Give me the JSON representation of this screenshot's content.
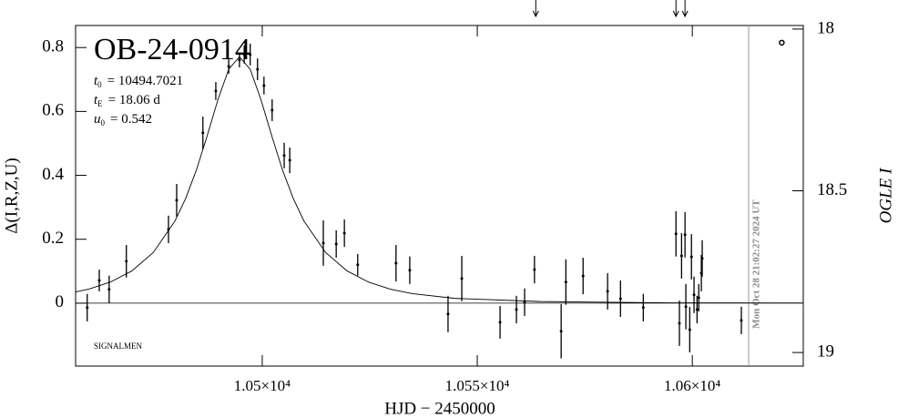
{
  "chart_data": {
    "type": "scatter",
    "title": "OB-24-0914",
    "annotations": [
      {
        "symbol": "t",
        "subscript": "0",
        "text": "= 10494.7021"
      },
      {
        "symbol": "t",
        "subscript": "E",
        "text": "= 18.06 d"
      },
      {
        "symbol": "u",
        "subscript": "0",
        "text": "= 0.542"
      }
    ],
    "note": "SIGNALMEN",
    "timestamp": "Mon Oct 28 21:02:27 2024 UT",
    "timestamp_x": 10613.1,
    "arrows_x": [
      10563.6,
      10596.2,
      10598.3
    ],
    "xlabel": "HJD − 2450000",
    "ylabel": "Δ(I,R,Z,U)",
    "y2label": "OGLE I",
    "xlim": [
      10456.6,
      10625.8
    ],
    "ylim": [
      -0.197,
      0.869
    ],
    "y2lim": [
      19.042,
      17.989
    ],
    "xticks": [
      {
        "value": 10500,
        "label": "1.05×10⁴"
      },
      {
        "value": 10550,
        "label": "1.055×10⁴"
      },
      {
        "value": 10600,
        "label": "1.06×10⁴"
      }
    ],
    "yticks": [
      0,
      0.2,
      0.4,
      0.6,
      0.8
    ],
    "y2ticks": [
      18,
      18.5,
      19
    ],
    "baseline": 0,
    "series": [
      {
        "type": "errorbar",
        "color": "#000000",
        "x": [
          10459.3,
          10462.1,
          10464.4,
          10468.4,
          10478.2,
          10480.1,
          10486.2,
          10489.2,
          10492.2,
          10494.7,
          10495.8,
          10497.2,
          10498.9,
          10500.4,
          10502.3,
          10505.1,
          10506.4,
          10514.2,
          10517.2,
          10519.1,
          10522.2,
          10531.1,
          10534.3,
          10543.2,
          10546.4,
          10555.3,
          10559.1,
          10561.0,
          10563.3,
          10569.5,
          10570.6,
          10574.6,
          10580.3,
          10583.3,
          10588.6,
          10596.2,
          10597.0,
          10597.5,
          10598.3,
          10598.5,
          10599.4,
          10599.8,
          10600.4,
          10601.1,
          10601.5,
          10602.1,
          10602.3,
          10611.4
        ],
        "values": [
          -0.014,
          0.071,
          0.043,
          0.131,
          0.231,
          0.322,
          0.533,
          0.664,
          0.741,
          0.761,
          0.778,
          0.778,
          0.732,
          0.681,
          0.604,
          0.462,
          0.447,
          0.188,
          0.185,
          0.219,
          0.12,
          0.125,
          0.103,
          -0.034,
          0.077,
          -0.06,
          -0.02,
          0.003,
          0.105,
          -0.088,
          0.066,
          0.085,
          0.037,
          0.014,
          -0.014,
          0.217,
          -0.063,
          0.148,
          0.214,
          -0.011,
          -0.083,
          0.145,
          0.026,
          -0.02,
          0.017,
          0.094,
          0.14,
          -0.054
        ],
        "errors": [
          0.043,
          0.034,
          0.043,
          0.051,
          0.043,
          0.051,
          0.051,
          0.028,
          0.023,
          0.023,
          0.028,
          0.034,
          0.034,
          0.028,
          0.034,
          0.04,
          0.04,
          0.071,
          0.043,
          0.043,
          0.034,
          0.057,
          0.043,
          0.057,
          0.071,
          0.051,
          0.043,
          0.043,
          0.043,
          0.085,
          0.071,
          0.057,
          0.057,
          0.057,
          0.043,
          0.071,
          0.071,
          0.071,
          0.071,
          0.071,
          0.071,
          0.071,
          0.057,
          0.043,
          0.043,
          0.057,
          0.057,
          0.043
        ]
      },
      {
        "type": "circle",
        "color": "#000000",
        "axis": "y2",
        "x": [
          10620.8
        ],
        "values": [
          18.042
        ]
      },
      {
        "type": "line",
        "color": "#000000",
        "x": [
          10456.6,
          10459.7,
          10464.7,
          10469.7,
          10474.7,
          10479.7,
          10482.2,
          10484.7,
          10487.2,
          10489.7,
          10492.2,
          10494.7,
          10497.2,
          10499.7,
          10502.2,
          10504.7,
          10507.2,
          10509.7,
          10514.7,
          10519.7,
          10524.7,
          10529.7,
          10534.7,
          10544.7,
          10564.7,
          10594.7,
          10625.8
        ],
        "values": [
          0.035,
          0.044,
          0.066,
          0.101,
          0.159,
          0.257,
          0.328,
          0.417,
          0.524,
          0.637,
          0.732,
          0.771,
          0.732,
          0.637,
          0.524,
          0.417,
          0.328,
          0.257,
          0.159,
          0.101,
          0.066,
          0.044,
          0.03,
          0.015,
          0.005,
          0.001,
          0.0005
        ]
      }
    ]
  }
}
